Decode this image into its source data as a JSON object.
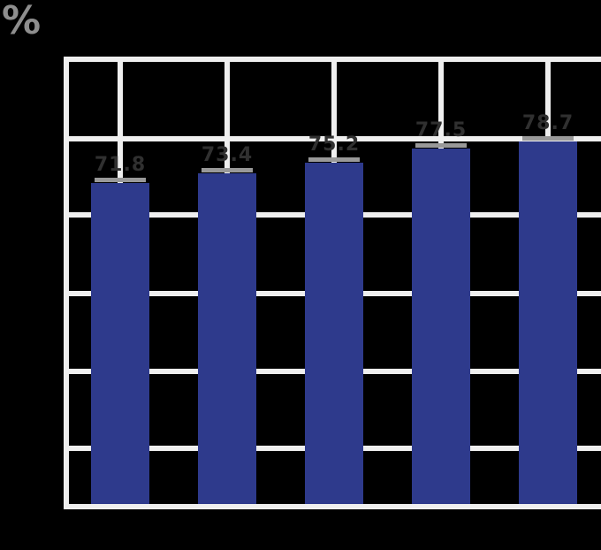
{
  "title": {
    "text": "%"
  },
  "colors": {
    "background": "#000000",
    "grid": "#efefef",
    "bar": "#2e3a8c",
    "bar_cap": "#999999",
    "value_label": "#303030",
    "title": "#8e8e8e"
  },
  "chart_data": {
    "type": "bar",
    "title": "%",
    "xlabel": "",
    "ylabel": "",
    "categories": [
      "",
      "",
      "",
      "",
      ""
    ],
    "values": [
      71.8,
      73.4,
      75.2,
      77.5,
      78.7
    ],
    "bar_labels": [
      "71.8",
      "73.4",
      "75.2",
      "77.5",
      "78.7"
    ],
    "legend": null,
    "grid": true,
    "gridlines": {
      "horizontal_count": 5,
      "vertical_alignment": "bar-centers"
    },
    "axis_tick_labels_visible": false,
    "error_caps": true
  }
}
